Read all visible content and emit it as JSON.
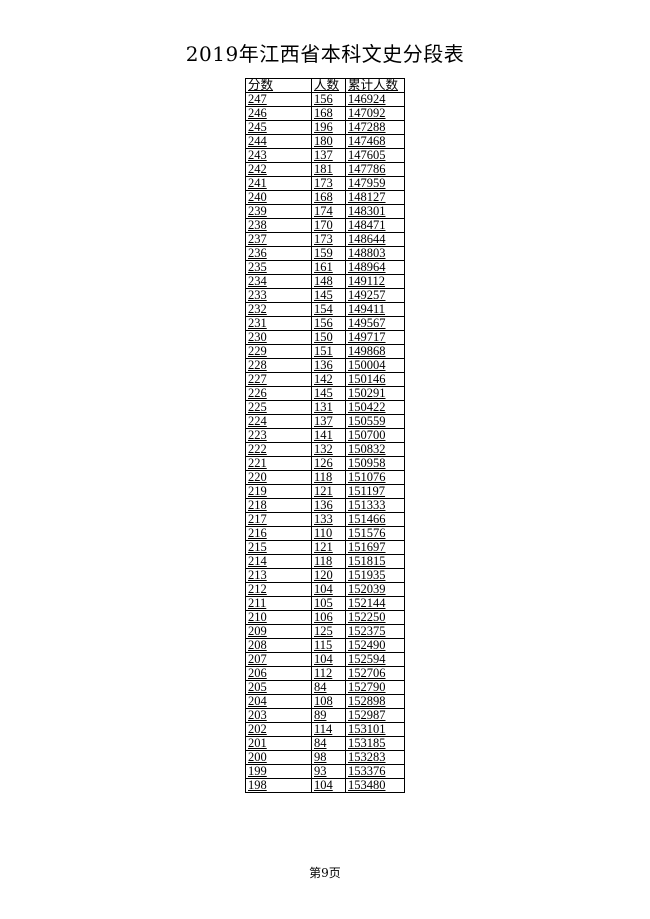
{
  "title": "2019年江西省本科文史分段表",
  "table": {
    "headers": [
      "分数",
      "人数",
      "累计人数"
    ],
    "rows": [
      [
        "247",
        "156",
        "146924"
      ],
      [
        "246",
        "168",
        "147092"
      ],
      [
        "245",
        "196",
        "147288"
      ],
      [
        "244",
        "180",
        "147468"
      ],
      [
        "243",
        "137",
        "147605"
      ],
      [
        "242",
        "181",
        "147786"
      ],
      [
        "241",
        "173",
        "147959"
      ],
      [
        "240",
        "168",
        "148127"
      ],
      [
        "239",
        "174",
        "148301"
      ],
      [
        "238",
        "170",
        "148471"
      ],
      [
        "237",
        "173",
        "148644"
      ],
      [
        "236",
        "159",
        "148803"
      ],
      [
        "235",
        "161",
        "148964"
      ],
      [
        "234",
        "148",
        "149112"
      ],
      [
        "233",
        "145",
        "149257"
      ],
      [
        "232",
        "154",
        "149411"
      ],
      [
        "231",
        "156",
        "149567"
      ],
      [
        "230",
        "150",
        "149717"
      ],
      [
        "229",
        "151",
        "149868"
      ],
      [
        "228",
        "136",
        "150004"
      ],
      [
        "227",
        "142",
        "150146"
      ],
      [
        "226",
        "145",
        "150291"
      ],
      [
        "225",
        "131",
        "150422"
      ],
      [
        "224",
        "137",
        "150559"
      ],
      [
        "223",
        "141",
        "150700"
      ],
      [
        "222",
        "132",
        "150832"
      ],
      [
        "221",
        "126",
        "150958"
      ],
      [
        "220",
        "118",
        "151076"
      ],
      [
        "219",
        "121",
        "151197"
      ],
      [
        "218",
        "136",
        "151333"
      ],
      [
        "217",
        "133",
        "151466"
      ],
      [
        "216",
        "110",
        "151576"
      ],
      [
        "215",
        "121",
        "151697"
      ],
      [
        "214",
        "118",
        "151815"
      ],
      [
        "213",
        "120",
        "151935"
      ],
      [
        "212",
        "104",
        "152039"
      ],
      [
        "211",
        "105",
        "152144"
      ],
      [
        "210",
        "106",
        "152250"
      ],
      [
        "209",
        "125",
        "152375"
      ],
      [
        "208",
        "115",
        "152490"
      ],
      [
        "207",
        "104",
        "152594"
      ],
      [
        "206",
        "112",
        "152706"
      ],
      [
        "205",
        "84",
        "152790"
      ],
      [
        "204",
        "108",
        "152898"
      ],
      [
        "203",
        "89",
        "152987"
      ],
      [
        "202",
        "114",
        "153101"
      ],
      [
        "201",
        "84",
        "153185"
      ],
      [
        "200",
        "98",
        "153283"
      ],
      [
        "199",
        "93",
        "153376"
      ],
      [
        "198",
        "104",
        "153480"
      ]
    ]
  },
  "footer": "第9页"
}
